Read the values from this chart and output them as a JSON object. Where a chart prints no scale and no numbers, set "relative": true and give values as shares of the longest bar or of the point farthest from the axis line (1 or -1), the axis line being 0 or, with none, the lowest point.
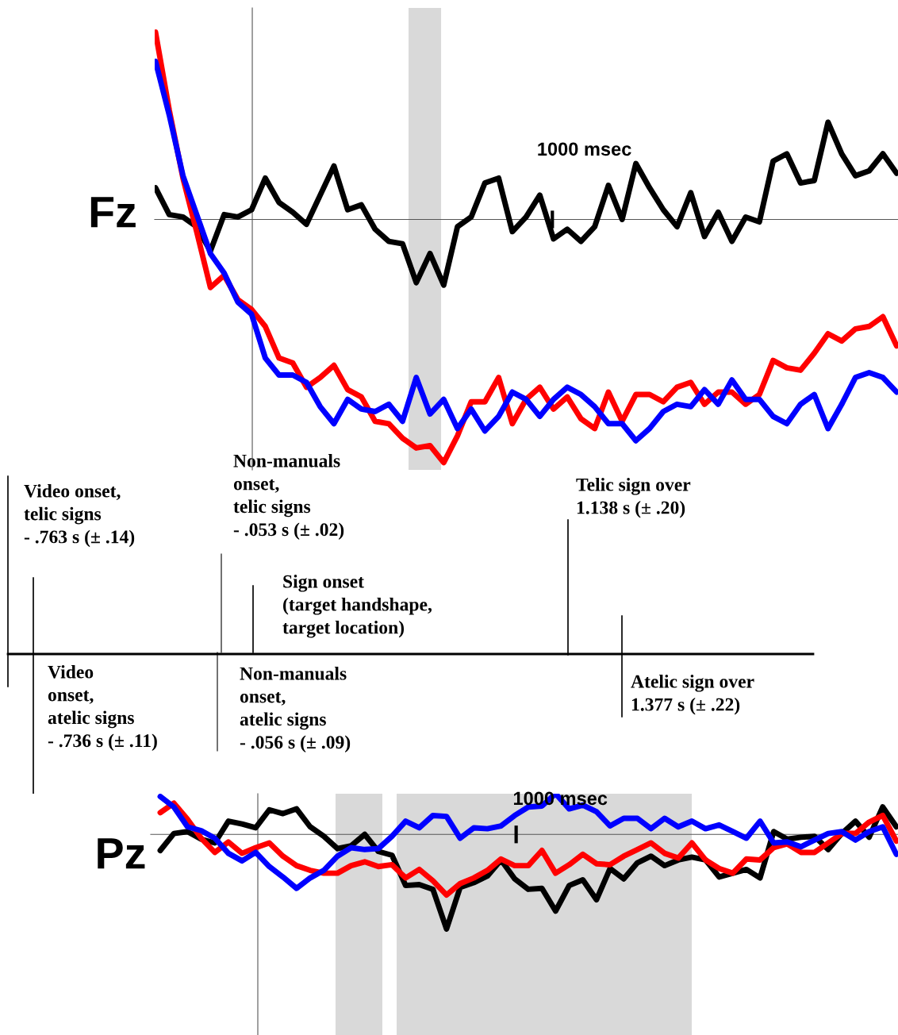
{
  "chart_data": [
    {
      "type": "line",
      "ylabel": "Fz",
      "relative": true,
      "annotations": [
        "1000 msec"
      ],
      "categories": [
        null,
        null,
        null,
        null,
        null,
        null,
        null,
        null,
        null,
        null,
        null,
        null,
        null,
        null,
        null,
        null,
        null,
        null,
        null,
        null,
        null,
        null,
        null,
        null,
        null,
        null,
        null,
        null,
        null,
        null,
        null,
        null,
        null,
        null,
        null,
        null,
        null,
        null,
        null,
        null,
        null,
        null,
        null,
        null,
        null,
        null,
        null,
        null,
        null,
        null,
        null,
        null,
        null,
        null,
        null
      ],
      "series": [
        {
          "color": "#000000",
          "values": [
            0.13,
            0.02,
            0.01,
            -0.03,
            -0.13,
            0.02,
            0.01,
            0.04,
            0.17,
            0.07,
            0.03,
            -0.02,
            0.1,
            0.22,
            0.04,
            0.06,
            -0.04,
            -0.09,
            -0.1,
            -0.26,
            -0.14,
            -0.27,
            -0.03,
            0.01,
            0.15,
            0.17,
            -0.05,
            0.01,
            0.1,
            -0.08,
            -0.04,
            -0.09,
            -0.03,
            0.14,
            0.0,
            0.23,
            0.13,
            0.04,
            -0.03,
            0.11,
            -0.07,
            0.03,
            -0.09,
            0.01,
            -0.01,
            0.24,
            0.27,
            0.15,
            0.16,
            0.4,
            0.27,
            0.18,
            0.2,
            0.27,
            0.19
          ]
        },
        {
          "color": "#ff0000",
          "values": [
            0.77,
            0.45,
            0.17,
            -0.05,
            -0.28,
            -0.23,
            -0.33,
            -0.37,
            -0.44,
            -0.57,
            -0.59,
            -0.69,
            -0.65,
            -0.6,
            -0.7,
            -0.73,
            -0.83,
            -0.84,
            -0.9,
            -0.94,
            -0.93,
            -1.0,
            -0.89,
            -0.75,
            -0.75,
            -0.65,
            -0.84,
            -0.74,
            -0.69,
            -0.78,
            -0.73,
            -0.82,
            -0.86,
            -0.71,
            -0.83,
            -0.72,
            -0.72,
            -0.75,
            -0.69,
            -0.67,
            -0.76,
            -0.71,
            -0.71,
            -0.76,
            -0.72,
            -0.58,
            -0.61,
            -0.62,
            -0.55,
            -0.47,
            -0.5,
            -0.45,
            -0.44,
            -0.4,
            -0.52
          ]
        },
        {
          "color": "#0000ff",
          "values": [
            0.65,
            0.43,
            0.18,
            0.02,
            -0.14,
            -0.22,
            -0.34,
            -0.39,
            -0.57,
            -0.64,
            -0.64,
            -0.67,
            -0.77,
            -0.84,
            -0.74,
            -0.78,
            -0.79,
            -0.76,
            -0.83,
            -0.65,
            -0.8,
            -0.74,
            -0.86,
            -0.78,
            -0.87,
            -0.81,
            -0.71,
            -0.74,
            -0.81,
            -0.74,
            -0.69,
            -0.72,
            -0.77,
            -0.84,
            -0.84,
            -0.91,
            -0.86,
            -0.79,
            -0.76,
            -0.77,
            -0.7,
            -0.76,
            -0.66,
            -0.74,
            -0.74,
            -0.81,
            -0.84,
            -0.76,
            -0.72,
            -0.86,
            -0.76,
            -0.65,
            -0.63,
            -0.65,
            -0.71
          ]
        }
      ]
    },
    {
      "type": "other",
      "annotations": [
        "Video onset,\ntelic signs\n- .763 s (± .14)",
        "Non-manuals\nonset,\ntelic signs\n- .053 s (± .02)",
        "Telic sign over\n1.138 s (± .20)",
        "Sign onset\n(target handshape,\ntarget location)",
        "Video\nonset,\natelic signs\n- .736 s (± .11)",
        "Non-manuals\nonset,\natelic signs\n- .056 s (± .09)",
        "Atelic sign over\n1.377 s (± .22)"
      ]
    },
    {
      "type": "line",
      "ylabel": "Pz",
      "relative": true,
      "annotations": [
        "1000 msec"
      ],
      "categories": [
        null,
        null,
        null,
        null,
        null,
        null,
        null,
        null,
        null,
        null,
        null,
        null,
        null,
        null,
        null,
        null,
        null,
        null,
        null,
        null,
        null,
        null,
        null,
        null,
        null,
        null,
        null,
        null,
        null,
        null,
        null,
        null,
        null,
        null,
        null,
        null,
        null,
        null,
        null,
        null,
        null,
        null,
        null,
        null,
        null,
        null,
        null,
        null,
        null,
        null,
        null,
        null,
        null,
        null,
        null
      ],
      "series": [
        {
          "color": "#000000",
          "values": [
            -0.17,
            0.01,
            0.03,
            -0.05,
            -0.09,
            0.14,
            0.11,
            0.07,
            0.26,
            0.22,
            0.27,
            0.08,
            -0.02,
            -0.15,
            -0.12,
            0.0,
            -0.18,
            -0.22,
            -0.54,
            -0.53,
            -0.58,
            -1.0,
            -0.56,
            -0.51,
            -0.44,
            -0.27,
            -0.47,
            -0.58,
            -0.57,
            -0.81,
            -0.54,
            -0.48,
            -0.69,
            -0.36,
            -0.47,
            -0.3,
            -0.23,
            -0.33,
            -0.27,
            -0.24,
            -0.27,
            -0.45,
            -0.41,
            -0.37,
            -0.46,
            0.03,
            -0.05,
            -0.03,
            -0.02,
            -0.16,
            0.01,
            0.14,
            -0.03,
            0.29,
            0.08
          ]
        },
        {
          "color": "#ff0000",
          "values": [
            0.23,
            0.33,
            0.16,
            -0.04,
            -0.19,
            -0.08,
            -0.2,
            -0.14,
            -0.09,
            -0.23,
            -0.33,
            -0.38,
            -0.41,
            -0.41,
            -0.33,
            -0.29,
            -0.34,
            -0.32,
            -0.46,
            -0.37,
            -0.49,
            -0.64,
            -0.52,
            -0.46,
            -0.38,
            -0.26,
            -0.33,
            -0.33,
            -0.17,
            -0.41,
            -0.32,
            -0.21,
            -0.31,
            -0.32,
            -0.23,
            -0.16,
            -0.09,
            -0.2,
            -0.25,
            -0.09,
            -0.27,
            -0.36,
            -0.41,
            -0.26,
            -0.27,
            -0.14,
            -0.1,
            -0.19,
            -0.19,
            -0.09,
            0.01,
            0.01,
            0.13,
            0.2,
            -0.07
          ]
        },
        {
          "color": "#0000ff",
          "values": [
            0.4,
            0.29,
            0.08,
            0.04,
            -0.04,
            -0.2,
            -0.28,
            -0.19,
            -0.34,
            -0.45,
            -0.57,
            -0.46,
            -0.38,
            -0.23,
            -0.14,
            -0.16,
            -0.15,
            -0.02,
            0.14,
            0.07,
            0.2,
            0.19,
            -0.04,
            0.07,
            0.06,
            0.09,
            0.2,
            0.29,
            0.3,
            0.43,
            0.27,
            0.31,
            0.24,
            0.09,
            0.17,
            0.17,
            0.06,
            0.17,
            0.08,
            0.14,
            0.06,
            0.1,
            0.03,
            -0.04,
            0.14,
            -0.09,
            -0.08,
            -0.13,
            -0.06,
            0.01,
            0.03,
            -0.06,
            0.03,
            0.08,
            -0.21
          ]
        }
      ]
    }
  ]
}
